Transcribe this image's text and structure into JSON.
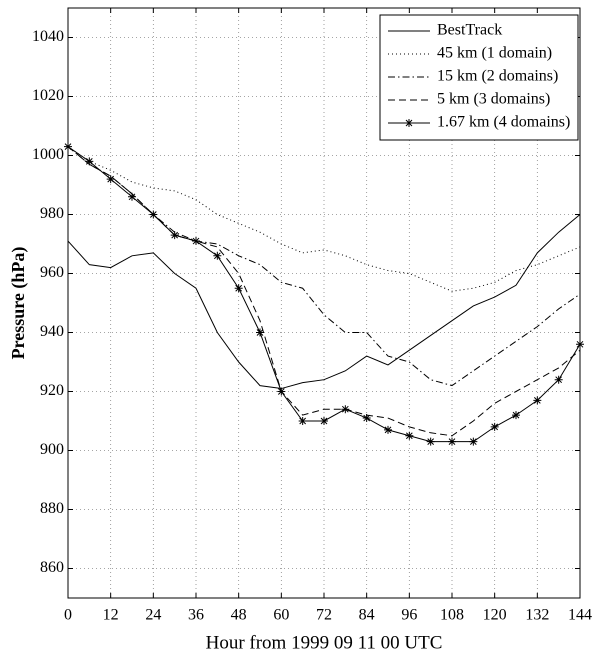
{
  "chart_data": {
    "type": "line",
    "xlabel": "Hour from 1999 09 11 00 UTC",
    "ylabel": "Pressure (hPa)",
    "x": [
      0,
      6,
      12,
      18,
      24,
      30,
      36,
      42,
      48,
      54,
      60,
      66,
      72,
      78,
      84,
      90,
      96,
      102,
      108,
      114,
      120,
      126,
      132,
      138,
      144
    ],
    "series": [
      {
        "name": "BestTrack",
        "color": "#000000",
        "style": "solid",
        "values": [
          971,
          963,
          962,
          966,
          967,
          960,
          955,
          940,
          930,
          922,
          921,
          923,
          924,
          927,
          932,
          929,
          934,
          939,
          944,
          949,
          952,
          956,
          967,
          974,
          980
        ]
      },
      {
        "name": "45 km (1 domain)",
        "color": "#000000",
        "style": "dotted",
        "values": [
          1003,
          998,
          995,
          991,
          989,
          988,
          985,
          980,
          977,
          974,
          970,
          967,
          968,
          966,
          963,
          961,
          960,
          957,
          954,
          955,
          957,
          961,
          963,
          966,
          969
        ]
      },
      {
        "name": "15 km (2 domains)",
        "color": "#000000",
        "style": "dashdot",
        "values": [
          1003,
          997,
          993,
          987,
          980,
          974,
          971,
          970,
          966,
          963,
          957,
          955,
          946,
          940,
          940,
          932,
          930,
          924,
          922,
          927,
          932,
          937,
          942,
          948,
          953
        ]
      },
      {
        "name": "5 km (3 domains)",
        "color": "#000000",
        "style": "dashed",
        "values": [
          1003,
          997,
          993,
          987,
          980,
          973,
          971,
          969,
          960,
          944,
          920,
          912,
          914,
          914,
          912,
          911,
          908,
          906,
          905,
          910,
          916,
          920,
          924,
          928,
          934
        ]
      },
      {
        "name": "1.67 km (4 domains)",
        "color": "#000000",
        "style": "solid",
        "marker": "star",
        "values": [
          1003,
          998,
          992,
          986,
          980,
          973,
          971,
          966,
          955,
          940,
          920,
          910,
          910,
          914,
          911,
          907,
          905,
          903,
          903,
          903,
          908,
          912,
          917,
          924,
          936
        ]
      }
    ],
    "xlim": [
      0,
      144
    ],
    "xticks": [
      0,
      12,
      24,
      36,
      48,
      60,
      72,
      84,
      96,
      108,
      120,
      132,
      144
    ],
    "ylim": [
      850,
      1050
    ],
    "yticks": [
      860,
      880,
      900,
      920,
      940,
      960,
      980,
      1000,
      1020,
      1040
    ],
    "grid": true,
    "legend": "top-right"
  }
}
